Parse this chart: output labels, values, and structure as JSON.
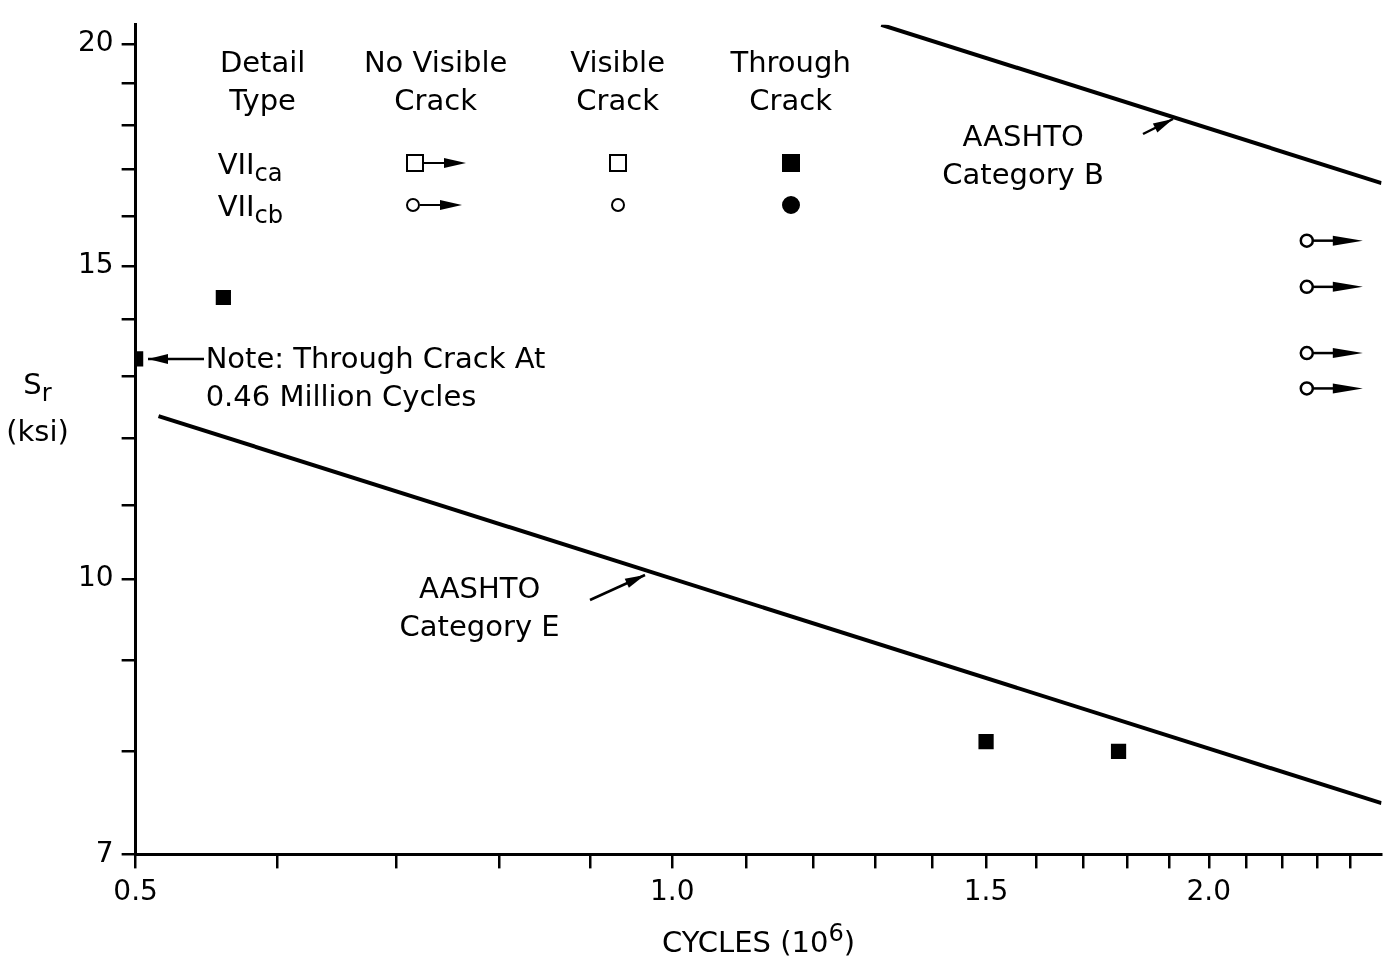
{
  "chart_data": {
    "type": "scatter",
    "xlabel": "CYCLES (10$^{6}$)",
    "ylabel": "S$_{r}$ (ksi)",
    "log": "xy",
    "grid": false,
    "xlim": [
      0.5,
      2.5
    ],
    "ylim": [
      7,
      20.5
    ],
    "xticks": [
      0.5,
      {
        "value": 0.6,
        "label": null
      },
      {
        "value": 0.7,
        "label": null
      },
      {
        "value": 0.8,
        "label": null
      },
      {
        "value": 0.9,
        "label": null
      },
      {
        "value": 1,
        "label": "1.0"
      },
      {
        "value": 1.1,
        "label": null
      },
      {
        "value": 1.2,
        "label": null
      },
      {
        "value": 1.3,
        "label": null
      },
      {
        "value": 1.4,
        "label": null
      },
      1.5,
      {
        "value": 1.6,
        "label": null
      },
      {
        "value": 1.7,
        "label": null
      },
      {
        "value": 1.8,
        "label": null
      },
      {
        "value": 1.9,
        "label": null
      },
      {
        "value": 2,
        "label": "2.0"
      },
      {
        "value": 2.1,
        "label": null
      },
      {
        "value": 2.2,
        "label": null
      },
      {
        "value": 2.3,
        "label": null
      },
      {
        "value": 2.4,
        "label": null
      }
    ],
    "yticks": [
      7,
      {
        "value": 8,
        "label": null
      },
      {
        "value": 9,
        "label": null
      },
      10,
      {
        "value": 11,
        "label": null
      },
      {
        "value": 12,
        "label": null
      },
      {
        "value": 13,
        "label": null
      },
      {
        "value": 14,
        "label": null
      },
      15,
      {
        "value": 16,
        "label": null
      },
      {
        "value": 17,
        "label": null
      },
      {
        "value": 18,
        "label": null
      },
      {
        "value": 19,
        "label": null
      },
      20
    ],
    "series": [
      {
        "marker": "square",
        "color": "#000000",
        "x": [
          0.5,
          0.56,
          1.5,
          1.78
        ],
        "values": [
          13.3,
          14.4,
          8.1,
          8.0
        ]
      },
      {
        "marker": "circle",
        "color": "#000000",
        "x": [
          2.27,
          2.27,
          2.27,
          2.27
        ],
        "values": [
          15.5,
          14.6,
          13.4,
          12.8
        ]
      },
      {
        "type": "line",
        "marker": "none",
        "color": "#000000",
        "x": [
          1.31,
          2.5
        ],
        "values": [
          20.5,
          16.7
        ]
      },
      {
        "type": "line",
        "marker": "none",
        "color": "#000000",
        "x": [
          0.515,
          2.5
        ],
        "values": [
          12.35,
          7.48
        ]
      }
    ],
    "annotations": [
      "Detail Type",
      "No Visible Crack",
      "Visible Crack",
      "Through Crack",
      "VII$_{ca}$",
      "VII$_{cb}$",
      {
        "text": "Note: Through Crack At 0.46 Million Cycles",
        "x": 0.5,
        "y": 13.3
      },
      {
        "text": "AASHTO Category B",
        "x": 1.91,
        "y": 18.15
      },
      {
        "text": "AASHTO Category E",
        "x": 0.965,
        "y": 10.05
      }
    ]
  }
}
